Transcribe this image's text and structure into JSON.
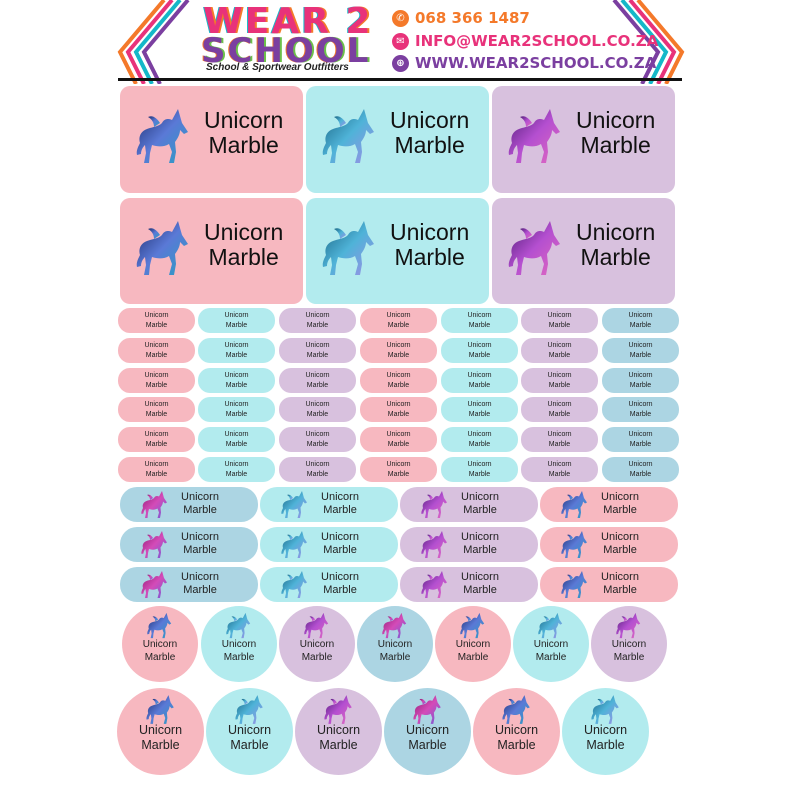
{
  "header": {
    "logo_line1": "WEAR 2",
    "logo_line2": "SCHOOL",
    "tagline": "School & Sportwear Outfitters",
    "phone": "068 366 1487",
    "email": "INFO@WEAR2SCHOOL.CO.ZA",
    "website": "WWW.WEAR2SCHOOL.CO.ZA",
    "phone_icon": "phone-icon",
    "email_icon": "envelope-icon",
    "web_icon": "globe-icon",
    "accent_colors": [
      "#f4792a",
      "#e8327a",
      "#14b8c8",
      "#7b3fa0"
    ]
  },
  "label": {
    "line1": "Unicorn",
    "line2": "Marble",
    "icon": "unicorn-icon"
  },
  "colors": {
    "pink": "#f7b8c0",
    "cyan": "#b2ebee",
    "lavender": "#d8c1de",
    "blue": "#acd5e3"
  }
}
